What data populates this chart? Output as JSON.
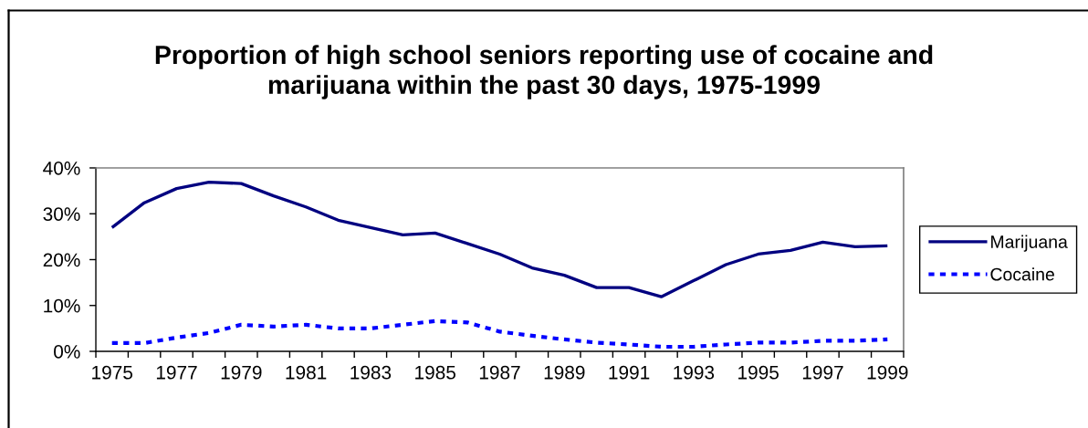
{
  "chart_data": {
    "type": "line",
    "title": "Proportion of high school seniors reporting use of cocaine and\nmarijuana within the past 30 days, 1975-1999",
    "categories": [
      "1975",
      null,
      "1977",
      null,
      "1979",
      null,
      "1981",
      null,
      "1983",
      null,
      "1985",
      null,
      "1987",
      null,
      "1989",
      null,
      "1991",
      null,
      "1993",
      null,
      "1995",
      null,
      "1997",
      null,
      "1999"
    ],
    "series": [
      {
        "name": "Marijuana",
        "color": "#000080",
        "line_style": "solid",
        "values": [
          27.0,
          32.4,
          35.5,
          36.9,
          36.6,
          33.9,
          31.5,
          28.6,
          27.0,
          25.4,
          25.8,
          23.5,
          21.2,
          18.2,
          16.6,
          13.9,
          13.9,
          11.9,
          15.4,
          18.9,
          21.2,
          22.0,
          23.8,
          22.8,
          23.0
        ]
      },
      {
        "name": "Cocaine",
        "color": "#0000ff",
        "line_style": "dashed",
        "values": [
          1.8,
          1.8,
          3.0,
          4.0,
          5.8,
          5.4,
          5.8,
          5.0,
          5.0,
          5.8,
          6.6,
          6.3,
          4.3,
          3.4,
          2.6,
          1.9,
          1.5,
          1.0,
          1.0,
          1.5,
          1.9,
          1.9,
          2.3,
          2.3,
          2.6
        ]
      }
    ],
    "ylim": [
      0,
      40
    ],
    "yticks": [
      {
        "value": 0,
        "label": "0%"
      },
      {
        "value": 10,
        "label": "10%"
      },
      {
        "value": 20,
        "label": "20%"
      },
      {
        "value": 30,
        "label": "30%"
      },
      {
        "value": 40,
        "label": "40%"
      }
    ],
    "grid": false,
    "legend": "right"
  }
}
